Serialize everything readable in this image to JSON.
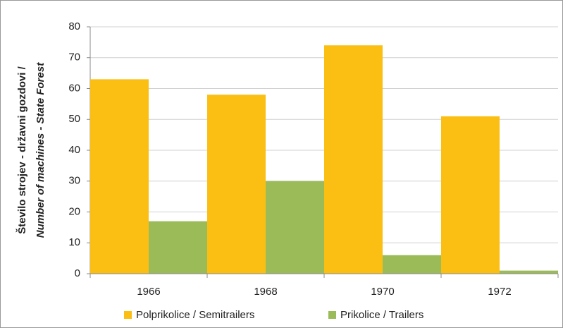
{
  "chart_data": {
    "type": "bar",
    "ylabel": [
      "Število strojev - državni gozdovi /",
      "Number of machines - State Forest"
    ],
    "categories": [
      "1966",
      "1968",
      "1970",
      "1972"
    ],
    "series": [
      {
        "name": "Polprikolice / Semitrailers",
        "color": "#fbbf14",
        "values": [
          63,
          58,
          74,
          51
        ]
      },
      {
        "name": "Prikolice / Trailers",
        "color": "#9bbb59",
        "values": [
          17,
          30,
          6,
          1
        ]
      }
    ],
    "ylim": [
      0,
      80
    ],
    "yticks": [
      0,
      10,
      20,
      30,
      40,
      50,
      60,
      70,
      80
    ],
    "grid": true,
    "legend": "bottom"
  }
}
